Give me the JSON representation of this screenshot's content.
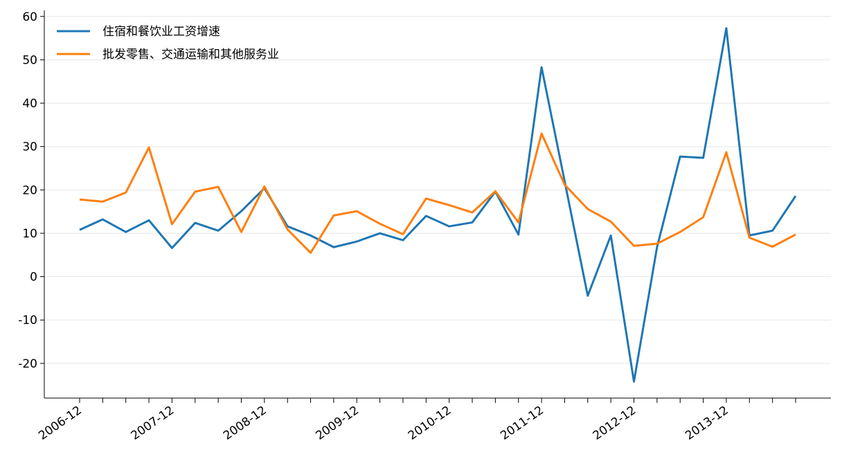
{
  "chart_data": {
    "type": "line",
    "categories": [
      "2006-12",
      null,
      null,
      null,
      "2007-12",
      null,
      null,
      null,
      "2008-12",
      null,
      null,
      null,
      "2009-12",
      null,
      null,
      null,
      "2010-12",
      null,
      null,
      null,
      "2011-12",
      null,
      null,
      null,
      "2012-12",
      null,
      null,
      null,
      "2013-12",
      null,
      null,
      null
    ],
    "series": [
      {
        "name": "住宿和餐饮业工资增速",
        "color": "#1f77b4",
        "values": [
          10.8,
          13.2,
          10.3,
          13.0,
          6.6,
          12.4,
          10.6,
          15.1,
          20.4,
          11.6,
          9.5,
          6.8,
          8.1,
          10.0,
          8.4,
          14.0,
          11.6,
          12.5,
          19.6,
          9.7,
          48.3,
          22.0,
          -4.4,
          9.5,
          -24.2,
          6.8,
          27.7,
          27.4,
          57.3,
          9.5,
          10.6,
          18.6
        ]
      },
      {
        "name": "批发零售、交通运输和其他服务业",
        "color": "#ff7f0e",
        "values": [
          17.8,
          17.3,
          19.4,
          29.8,
          12.1,
          19.6,
          20.7,
          10.3,
          20.8,
          10.9,
          5.5,
          14.1,
          15.1,
          12.2,
          9.8,
          18.0,
          16.5,
          14.8,
          19.7,
          12.5,
          33.0,
          21.2,
          15.6,
          12.7,
          7.1,
          7.6,
          10.3,
          13.7,
          28.7,
          9.0,
          6.9,
          9.7
        ]
      }
    ],
    "ylim": [
      -28,
      61.4
    ],
    "yticks": [
      -20,
      -10,
      0,
      10,
      20,
      30,
      40,
      50,
      60
    ],
    "grid": true,
    "legend": "upper-left"
  }
}
